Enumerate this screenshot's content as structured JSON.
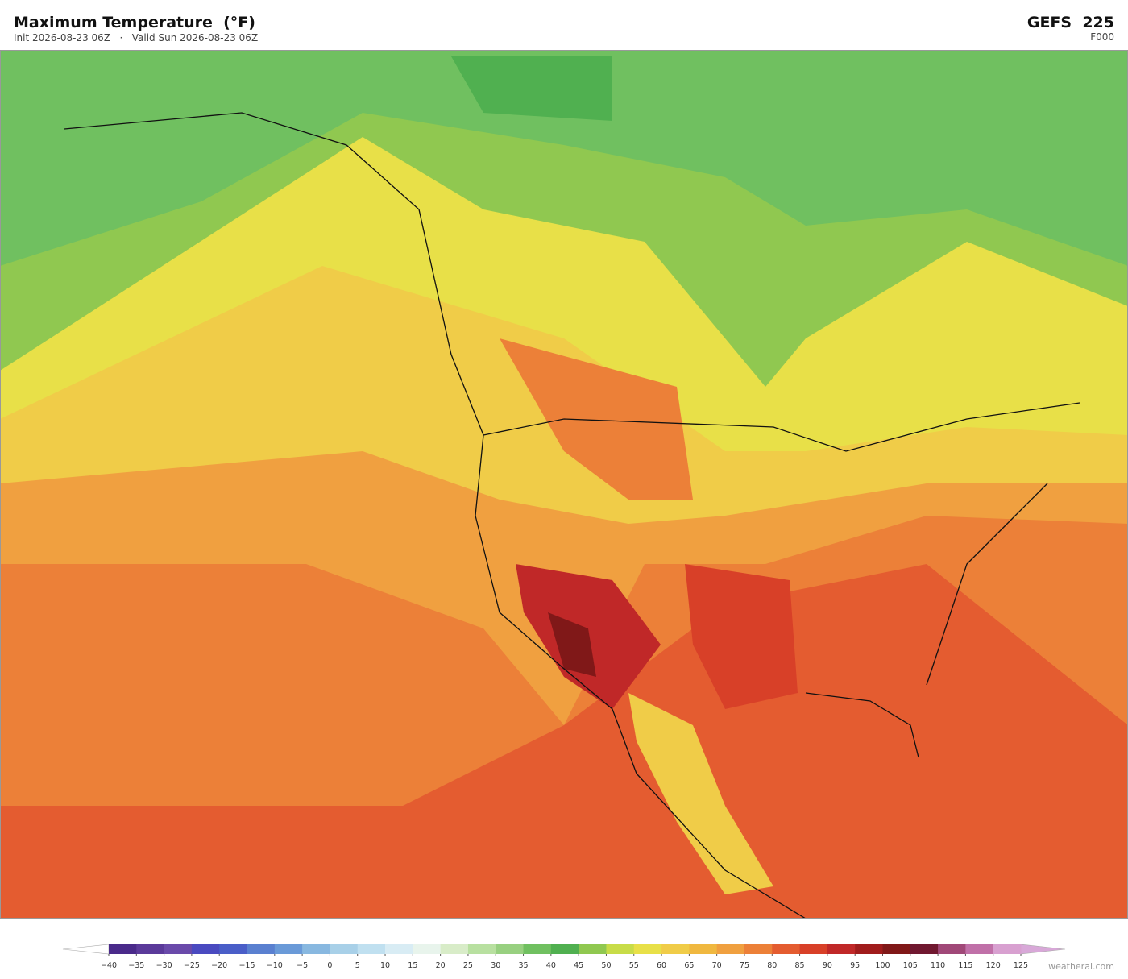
{
  "header": {
    "title": "Maximum Temperature  (°F)",
    "subtitle": "Init 2026-08-23 06Z   ·   Valid Sun 2026-08-23 06Z",
    "model": "GEFS  225",
    "forecast_hour": "F000"
  },
  "colorbar": {
    "ticks": [
      {
        "value": -40,
        "label": "−40"
      },
      {
        "value": -35,
        "label": "−35"
      },
      {
        "value": -30,
        "label": "−30"
      },
      {
        "value": -25,
        "label": "−25"
      },
      {
        "value": -20,
        "label": "−20"
      },
      {
        "value": -15,
        "label": "−15"
      },
      {
        "value": -10,
        "label": "−10"
      },
      {
        "value": -5,
        "label": "−5"
      },
      0,
      5,
      10,
      15,
      20,
      25,
      30,
      35,
      40,
      45,
      50,
      55,
      60,
      65,
      70,
      75,
      80,
      85,
      90,
      95,
      100,
      105,
      110,
      115,
      120,
      125
    ],
    "colors": [
      "#4a2a8a",
      "#5b3a9a",
      "#6a4aaa",
      "#4a4ac0",
      "#4a5ec8",
      "#5a80d0",
      "#6a9ad8",
      "#88b8e0",
      "#a8d0e8",
      "#c0e0f0",
      "#d8ecf4",
      "#e8f4ec",
      "#d8ecc8",
      "#b8e0a0",
      "#98d080",
      "#70c060",
      "#50b050",
      "#90c850",
      "#c8dc48",
      "#e8e048",
      "#f0cc48",
      "#f0b840",
      "#f0a040",
      "#ec8038",
      "#e45c30",
      "#d84028",
      "#c02828",
      "#a01c1c",
      "#801818",
      "#701830",
      "#a04878",
      "#c070a8",
      "#d8a0d0"
    ],
    "under_color": "#ffffff",
    "over_color": "#d8a8d8"
  },
  "footer": {
    "watermark": "weatherai.com"
  }
}
